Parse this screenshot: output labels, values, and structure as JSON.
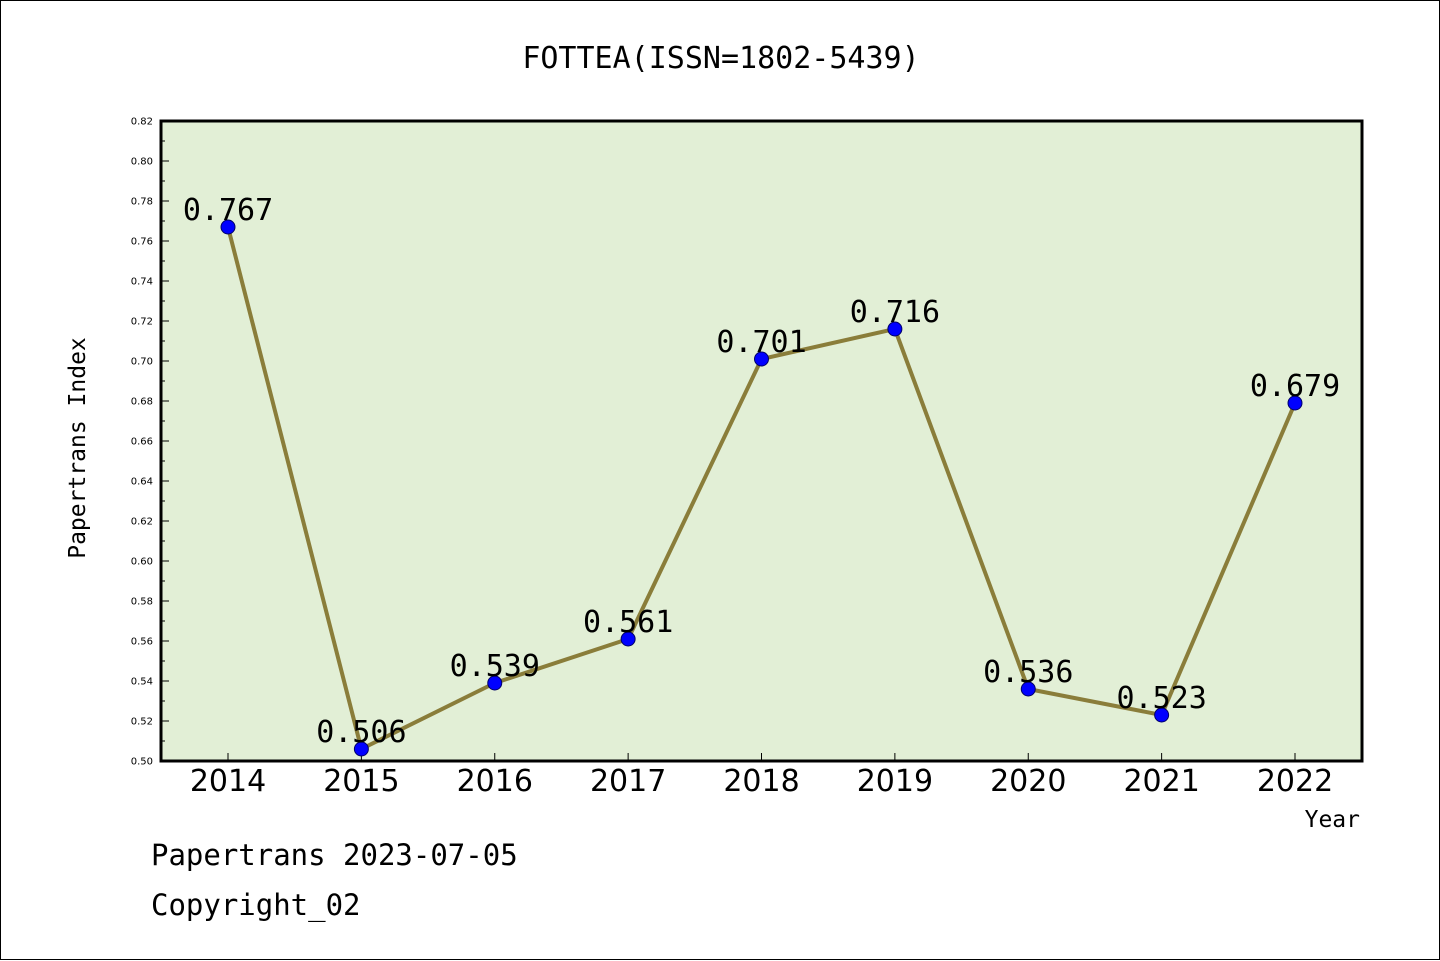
{
  "chart_data": {
    "type": "line",
    "title": "FOTTEA(ISSN=1802-5439)",
    "xlabel": "Year",
    "ylabel": "Papertrans Index",
    "categories": [
      "2014",
      "2015",
      "2016",
      "2017",
      "2018",
      "2019",
      "2020",
      "2021",
      "2022"
    ],
    "series": [
      {
        "values": [
          0.767,
          0.506,
          0.539,
          0.561,
          0.701,
          0.716,
          0.536,
          0.523,
          0.679
        ],
        "labels": [
          "0.767",
          "0.506",
          "0.539",
          "0.561",
          "0.701",
          "0.716",
          "0.536",
          "0.523",
          "0.679"
        ]
      }
    ],
    "ylim": [
      0.5,
      0.82
    ],
    "yticks": [
      "0.50",
      "0.52",
      "0.54",
      "0.56",
      "0.58",
      "0.60",
      "0.62",
      "0.64",
      "0.66",
      "0.68",
      "0.70",
      "0.72",
      "0.74",
      "0.76",
      "0.78",
      "0.80",
      "0.82"
    ],
    "grid": false,
    "legend": "none",
    "colors": {
      "plot_background": "#e2efd6",
      "line": "#8a7d3a",
      "marker": "#0000ff"
    }
  },
  "footer": {
    "line1": "Papertrans 2023-07-05",
    "line2": "Copyright_02"
  }
}
